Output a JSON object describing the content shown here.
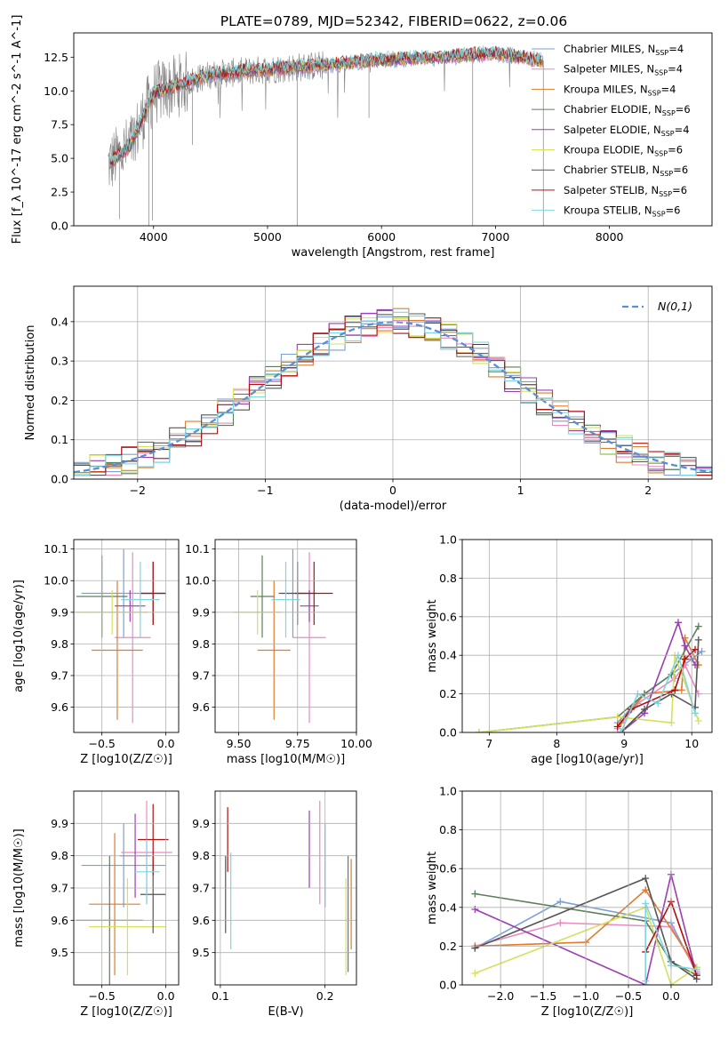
{
  "title": "PLATE=0789, MJD=52342, FIBERID=0622, z=0.06",
  "colors": {
    "spectrum": "#808080",
    "gaussian": "#5b8ed6",
    "grid": "#b0b0b0"
  },
  "legend_series": [
    {
      "label": "Chabrier MILES, N",
      "sub": "SSP",
      "tail": "=4",
      "color": "#7b9fd6"
    },
    {
      "label": "Salpeter MILES, N",
      "sub": "SSP",
      "tail": "=4",
      "color": "#e98ac0"
    },
    {
      "label": "Kroupa MILES, N",
      "sub": "SSP",
      "tail": "=4",
      "color": "#e07b2e"
    },
    {
      "label": "Chabrier ELODIE, N",
      "sub": "SSP",
      "tail": "=6",
      "color": "#5b7f5b"
    },
    {
      "label": "Salpeter ELODIE, N",
      "sub": "SSP",
      "tail": "=4",
      "color": "#9b3fb0"
    },
    {
      "label": "Kroupa ELODIE, N",
      "sub": "SSP",
      "tail": "=6",
      "color": "#d6e05b"
    },
    {
      "label": "Chabrier STELIB, N",
      "sub": "SSP",
      "tail": "=6",
      "color": "#555555"
    },
    {
      "label": "Salpeter STELIB, N",
      "sub": "SSP",
      "tail": "=6",
      "color": "#b01010"
    },
    {
      "label": "Kroupa STELIB, N",
      "sub": "SSP",
      "tail": "=6",
      "color": "#7fd6e0"
    }
  ],
  "chart_data": [
    {
      "id": "spectrum",
      "type": "line",
      "title": "PLATE=0789, MJD=52342, FIBERID=0622, z=0.06",
      "xlabel": "wavelength [Angstrom, rest frame]",
      "ylabel": "Flux [f_λ 10^-17 erg cm^-2 s^-1 A^-1]",
      "xlim": [
        3300,
        8900
      ],
      "ylim": [
        0,
        14.3
      ],
      "xticks": [
        "4000",
        "5000",
        "6000",
        "7000",
        "8000"
      ],
      "yticks": [
        "0.0",
        "2.5",
        "5.0",
        "7.5",
        "10.0",
        "12.5"
      ],
      "continuum_x": [
        3600,
        3800,
        4000,
        4500,
        5000,
        5500,
        6000,
        6500,
        7000,
        7500
      ],
      "continuum_y": [
        4.5,
        6.0,
        9.8,
        11.2,
        11.6,
        11.9,
        12.3,
        12.5,
        12.8,
        12.1
      ]
    },
    {
      "id": "residuals",
      "type": "histogram",
      "xlabel": "(data-model)/error",
      "ylabel": "Normed distribution",
      "xlim": [
        -2.5,
        2.5
      ],
      "ylim": [
        0,
        0.49
      ],
      "xticks": [
        "−2",
        "−1",
        "0",
        "1",
        "2"
      ],
      "yticks": [
        "0.0",
        "0.1",
        "0.2",
        "0.3",
        "0.4"
      ],
      "legend": "N(0,1)",
      "gaussian": {
        "mean": 0,
        "sigma": 1
      }
    },
    {
      "id": "age-vs-Z",
      "type": "errorbar",
      "xlabel": "Z [log10(Z/Z☉)]",
      "ylabel": "age [log10(age/yr)]",
      "xlim": [
        -0.72,
        0.1
      ],
      "ylim": [
        9.52,
        10.13
      ],
      "xticks": [
        "−0.5",
        "0.0"
      ],
      "yticks": [
        "9.6",
        "9.7",
        "9.8",
        "9.9",
        "10.0",
        "10.1"
      ],
      "points": [
        {
          "x": -0.33,
          "xerr": 0.33,
          "y": 9.96,
          "yerr": 0.14
        },
        {
          "x": -0.26,
          "xerr": 0.14,
          "y": 9.82,
          "yerr": 0.27
        },
        {
          "x": -0.38,
          "xerr": 0.2,
          "y": 9.78,
          "yerr": 0.22
        },
        {
          "x": -0.5,
          "xerr": 0.2,
          "y": 9.95,
          "yerr": 0.13
        },
        {
          "x": -0.28,
          "xerr": 0.12,
          "y": 9.92,
          "yerr": 0.05
        },
        {
          "x": -0.42,
          "xerr": 0.28,
          "y": 9.9,
          "yerr": 0.07
        },
        {
          "x": -0.1,
          "xerr": 0.1,
          "y": 9.96,
          "yerr": 0.1
        },
        {
          "x": -0.1,
          "xerr": 0.1,
          "y": 9.96,
          "yerr": 0.1
        },
        {
          "x": -0.2,
          "xerr": 0.15,
          "y": 9.94,
          "yerr": 0.12
        }
      ]
    },
    {
      "id": "age-vs-mass",
      "type": "errorbar",
      "xlabel": "mass [log10(M/M☉)]",
      "ylabel": "",
      "xlim": [
        9.4,
        10.0
      ],
      "ylim": [
        9.52,
        10.13
      ],
      "xticks": [
        "9.50",
        "9.75",
        "10.00"
      ],
      "yticks": [
        "9.6",
        "9.7",
        "9.8",
        "9.9",
        "10.0",
        "10.1"
      ],
      "points": [
        {
          "x": 9.73,
          "xerr": 0.05,
          "y": 9.96,
          "yerr": 0.14
        },
        {
          "x": 9.8,
          "xerr": 0.07,
          "y": 9.82,
          "yerr": 0.27
        },
        {
          "x": 9.65,
          "xerr": 0.07,
          "y": 9.78,
          "yerr": 0.22
        },
        {
          "x": 9.6,
          "xerr": 0.05,
          "y": 9.95,
          "yerr": 0.13
        },
        {
          "x": 9.8,
          "xerr": 0.04,
          "y": 9.92,
          "yerr": 0.05
        },
        {
          "x": 9.58,
          "xerr": 0.1,
          "y": 9.9,
          "yerr": 0.07
        },
        {
          "x": 9.75,
          "xerr": 0.08,
          "y": 9.96,
          "yerr": 0.1
        },
        {
          "x": 9.82,
          "xerr": 0.08,
          "y": 9.96,
          "yerr": 0.1
        },
        {
          "x": 9.7,
          "xerr": 0.06,
          "y": 9.94,
          "yerr": 0.12
        }
      ]
    },
    {
      "id": "massweight-vs-age",
      "type": "line",
      "xlabel": "age [log10(age/yr)]",
      "ylabel": "mass weight",
      "xlim": [
        6.6,
        10.3
      ],
      "ylim": [
        0,
        1.0
      ],
      "xticks": [
        "7",
        "8",
        "9",
        "10"
      ],
      "yticks": [
        "0.0",
        "0.2",
        "0.4",
        "0.6",
        "0.8",
        "1.0"
      ],
      "series": [
        {
          "x": [
            8.9,
            9.3,
            9.7,
            10.0,
            10.15
          ],
          "y": [
            0.05,
            0.2,
            0.3,
            0.38,
            0.42
          ]
        },
        {
          "x": [
            8.9,
            9.2,
            9.75,
            9.9,
            10.1
          ],
          "y": [
            0.02,
            0.15,
            0.28,
            0.35,
            0.2
          ]
        },
        {
          "x": [
            8.95,
            9.3,
            9.85,
            9.9,
            10.1
          ],
          "y": [
            0.05,
            0.2,
            0.22,
            0.49,
            0.35
          ]
        },
        {
          "x": [
            6.85,
            8.9,
            9.3,
            9.7,
            10.1
          ],
          "y": [
            0.0,
            0.08,
            0.2,
            0.3,
            0.55
          ]
        },
        {
          "x": [
            8.95,
            9.3,
            9.8,
            9.9,
            10.05
          ],
          "y": [
            0.0,
            0.1,
            0.57,
            0.45,
            0.35
          ]
        },
        {
          "x": [
            6.85,
            8.9,
            9.7,
            9.75,
            10.1
          ],
          "y": [
            0.0,
            0.08,
            0.05,
            0.4,
            0.06
          ]
        },
        {
          "x": [
            8.95,
            9.3,
            9.7,
            10.05,
            10.1
          ],
          "y": [
            0.0,
            0.12,
            0.2,
            0.13,
            0.48
          ]
        },
        {
          "x": [
            8.9,
            9.1,
            9.75,
            9.9,
            10.05
          ],
          "y": [
            0.03,
            0.12,
            0.22,
            0.38,
            0.43
          ]
        },
        {
          "x": [
            8.95,
            9.2,
            9.5,
            9.8,
            10.05
          ],
          "y": [
            0.0,
            0.2,
            0.15,
            0.4,
            0.1
          ]
        }
      ]
    },
    {
      "id": "mass-vs-Z",
      "type": "errorbar",
      "xlabel": "Z [log10(Z/Z☉)]",
      "ylabel": "mass [log10(M/M☉)]",
      "xlim": [
        -0.72,
        0.1
      ],
      "ylim": [
        9.4,
        10.0
      ],
      "xticks": [
        "−0.5",
        "0.0"
      ],
      "yticks": [
        "9.5",
        "9.6",
        "9.7",
        "9.8",
        "9.9"
      ],
      "points": [
        {
          "x": -0.33,
          "xerr": 0.33,
          "y": 9.77,
          "yerr": 0.13
        },
        {
          "x": -0.15,
          "xerr": 0.2,
          "y": 9.81,
          "yerr": 0.16
        },
        {
          "x": -0.4,
          "xerr": 0.2,
          "y": 9.65,
          "yerr": 0.22
        },
        {
          "x": -0.44,
          "xerr": 0.26,
          "y": 9.6,
          "yerr": 0.2
        },
        {
          "x": -0.24,
          "xerr": 0.12,
          "y": 9.8,
          "yerr": 0.13
        },
        {
          "x": -0.3,
          "xerr": 0.3,
          "y": 9.58,
          "yerr": 0.15
        },
        {
          "x": -0.1,
          "xerr": 0.1,
          "y": 9.68,
          "yerr": 0.12
        },
        {
          "x": -0.1,
          "xerr": 0.12,
          "y": 9.85,
          "yerr": 0.11
        },
        {
          "x": -0.15,
          "xerr": 0.1,
          "y": 9.75,
          "yerr": 0.1
        }
      ]
    },
    {
      "id": "mass-vs-ebv",
      "type": "errorbar",
      "xlabel": "E(B-V)",
      "ylabel": "",
      "xlim": [
        0.095,
        0.23
      ],
      "ylim": [
        9.4,
        10.0
      ],
      "xticks": [
        "0.1",
        "0.2"
      ],
      "yticks": [
        "9.5",
        "9.6",
        "9.7",
        "9.8",
        "9.9"
      ],
      "points": [
        {
          "x": 0.2,
          "y": 9.77,
          "yerr": 0.13
        },
        {
          "x": 0.195,
          "y": 9.81,
          "yerr": 0.16
        },
        {
          "x": 0.225,
          "y": 9.65,
          "yerr": 0.14
        },
        {
          "x": 0.222,
          "y": 9.62,
          "yerr": 0.18
        },
        {
          "x": 0.185,
          "y": 9.82,
          "yerr": 0.12
        },
        {
          "x": 0.22,
          "y": 9.58,
          "yerr": 0.15
        },
        {
          "x": 0.105,
          "y": 9.68,
          "yerr": 0.12
        },
        {
          "x": 0.107,
          "y": 9.85,
          "yerr": 0.1
        },
        {
          "x": 0.11,
          "y": 9.66,
          "yerr": 0.15
        }
      ]
    },
    {
      "id": "massweight-vs-Z",
      "type": "line",
      "xlabel": "Z [log10(Z/Z☉)]",
      "ylabel": "mass weight",
      "xlim": [
        -2.45,
        0.48
      ],
      "ylim": [
        0,
        1.0
      ],
      "xticks": [
        "−2.0",
        "−1.5",
        "−1.0",
        "−0.5",
        "0.0"
      ],
      "yticks": [
        "0.0",
        "0.2",
        "0.4",
        "0.6",
        "0.8",
        "1.0"
      ],
      "series": [
        {
          "x": [
            -2.3,
            -1.3,
            0.0,
            0.3
          ],
          "y": [
            0.19,
            0.43,
            0.32,
            0.06
          ]
        },
        {
          "x": [
            -2.3,
            -1.3,
            0.0,
            0.3
          ],
          "y": [
            0.2,
            0.32,
            0.3,
            0.07
          ]
        },
        {
          "x": [
            -2.3,
            -1.0,
            -0.3,
            0.3
          ],
          "y": [
            0.2,
            0.22,
            0.49,
            0.09
          ]
        },
        {
          "x": [
            -2.3,
            -0.3,
            0.0,
            0.3
          ],
          "y": [
            0.47,
            0.33,
            0.12,
            0.05
          ]
        },
        {
          "x": [
            -2.3,
            -0.3,
            0.0,
            0.3
          ],
          "y": [
            0.39,
            0.0,
            0.57,
            0.05
          ]
        },
        {
          "x": [
            -2.3,
            -0.3,
            0.0,
            0.3
          ],
          "y": [
            0.06,
            0.4,
            0.0,
            0.09
          ]
        },
        {
          "x": [
            -2.3,
            -0.3,
            0.0,
            0.3
          ],
          "y": [
            0.19,
            0.55,
            0.12,
            0.03
          ]
        },
        {
          "x": [
            -0.3,
            0.0,
            0.3
          ],
          "y": [
            0.17,
            0.43,
            0.05
          ]
        },
        {
          "x": [
            -0.3,
            -0.3,
            0.0,
            0.3
          ],
          "y": [
            0.02,
            0.42,
            0.1,
            0.08
          ]
        }
      ]
    }
  ]
}
